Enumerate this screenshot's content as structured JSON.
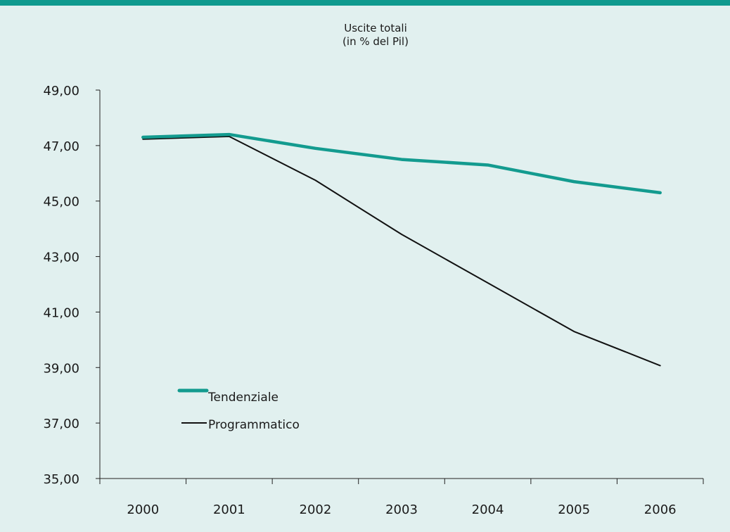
{
  "colors": {
    "background": "#e1f0ef",
    "top_bar": "#0f9a8e",
    "tendenziale": "#139b8f",
    "programmatico": "#111111",
    "axis": "#222222"
  },
  "chart_data": {
    "type": "line",
    "title": "Uscite totali",
    "subtitle": "(in % del Pil)",
    "xlabel": "",
    "ylabel": "",
    "categories": [
      "2000",
      "2001",
      "2002",
      "2003",
      "2004",
      "2005",
      "2006"
    ],
    "y_ticks": [
      "49,00",
      "47,00",
      "45,00",
      "43,00",
      "41,00",
      "39,00",
      "37,00",
      "35,00"
    ],
    "ylim": [
      35,
      49
    ],
    "grid": false,
    "legend_position": "bottom-left",
    "series": [
      {
        "name": "Tendenziale",
        "values": [
          47.3,
          47.4,
          46.9,
          46.5,
          46.3,
          45.7,
          45.3
        ]
      },
      {
        "name": "Programmatico",
        "values": [
          47.23,
          47.33,
          45.75,
          43.8,
          42.05,
          40.3,
          39.07
        ]
      }
    ]
  }
}
